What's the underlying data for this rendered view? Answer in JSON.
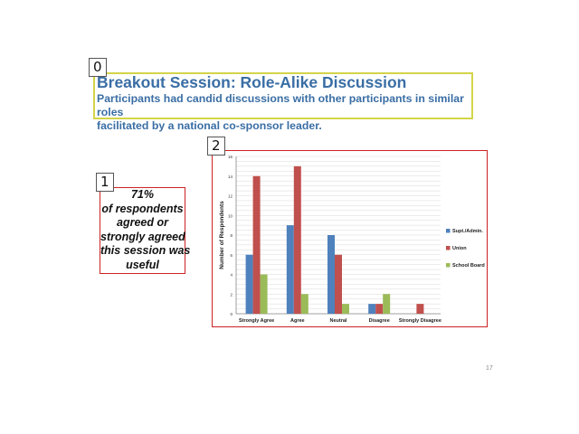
{
  "slide": {
    "title": "Breakout Session: Role-Alike Discussion",
    "subtitle_lines": [
      "Participants had candid discussions with other participants in similar roles",
      "facilitated by a national co-sponsor leader."
    ],
    "stat_lines": [
      "71%",
      "of respondents",
      "agreed or",
      "strongly agreed",
      "this session was",
      "useful"
    ],
    "page_number": "17"
  },
  "box_labels": [
    "0",
    "1",
    "2"
  ],
  "colors": {
    "title_blue": "#3a6ea5",
    "title_border": "#d4d44a",
    "red_border": "#cc2222",
    "supt": "#4f81bd",
    "union": "#c0504d",
    "board": "#9bbb59"
  },
  "chart_data": {
    "type": "bar",
    "categories": [
      "Strongly Agree",
      "Agree",
      "Neutral",
      "Disagree",
      "Strongly Disagree"
    ],
    "series": [
      {
        "name": "Supt./Admin.",
        "values": [
          6,
          9,
          8,
          1,
          0
        ],
        "color": "#4f81bd"
      },
      {
        "name": "Union",
        "values": [
          14,
          15,
          6,
          1,
          1
        ],
        "color": "#c0504d"
      },
      {
        "name": "School Board",
        "values": [
          4,
          2,
          1,
          2,
          0
        ],
        "color": "#9bbb59"
      }
    ],
    "title": "",
    "xlabel": "",
    "ylabel": "Number of Respondents",
    "ylim": [
      0,
      16
    ],
    "yticks": [
      0,
      2,
      4,
      6,
      8,
      10,
      12,
      14,
      16
    ],
    "grid": true,
    "legend_position": "right"
  }
}
